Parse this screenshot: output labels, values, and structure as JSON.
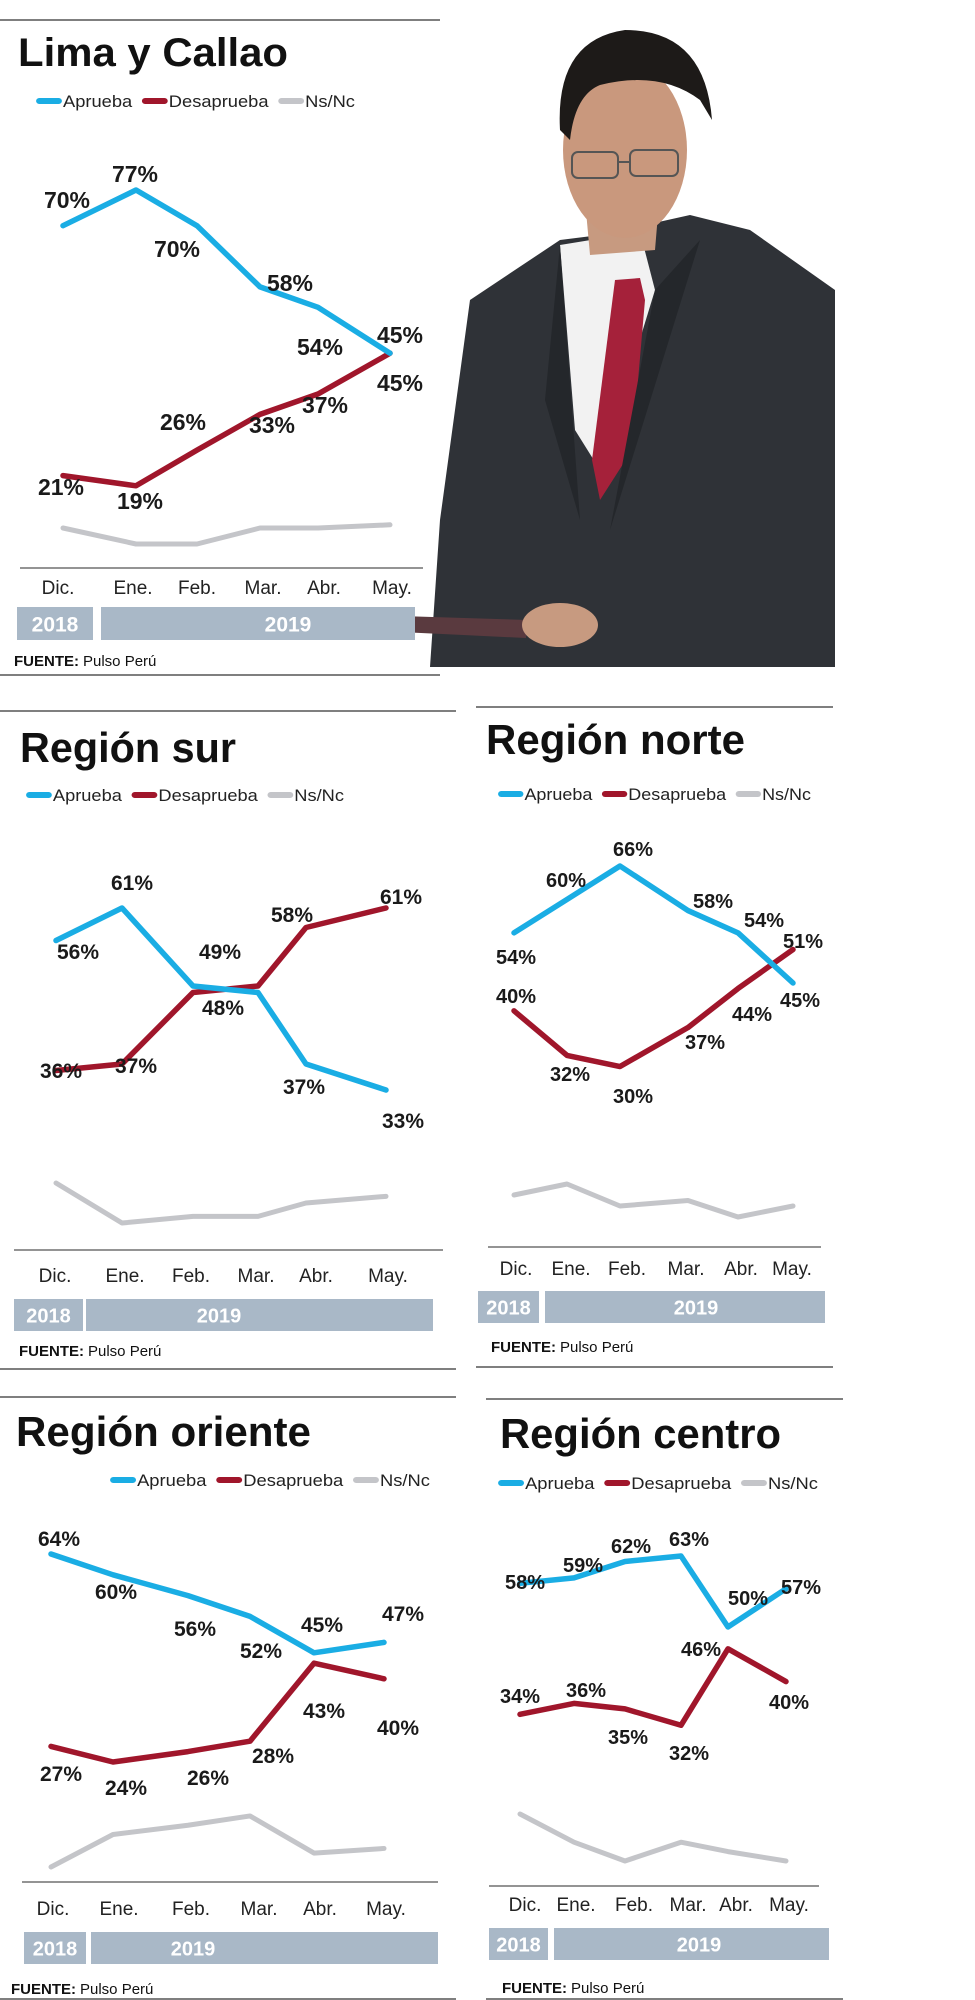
{
  "colors": {
    "aprueba": "#1aade4",
    "desaprueba": "#a0162b",
    "ns_nc": "#c4c5c9",
    "year_bar": "#a9b8c7"
  },
  "photo": {
    "icon": "man-in-suit-holding-tablet-photo"
  },
  "chart_data": [
    {
      "type": "line",
      "title": "Lima y Callao",
      "categories": [
        "Dic.",
        "Ene.",
        "Feb.",
        "Mar.",
        "Abr.",
        "May."
      ],
      "years": [
        "2018",
        "2019"
      ],
      "legend": [
        "Aprueba",
        "Desaprueba",
        "Ns/Nc"
      ],
      "series": [
        {
          "name": "Aprueba",
          "values": [
            70,
            77,
            70,
            58,
            54,
            45
          ],
          "labels": [
            "70%",
            "77%",
            "70%",
            "58%",
            "54%",
            "45%"
          ]
        },
        {
          "name": "Desaprueba",
          "values": [
            21,
            19,
            26,
            33,
            37,
            45
          ],
          "labels": [
            "21%",
            "19%",
            "26%",
            "33%",
            "37%",
            "45%"
          ]
        },
        {
          "name": "Ns/Nc",
          "values": [
            9,
            4,
            4,
            9,
            9,
            10
          ]
        }
      ],
      "source_label": "FUENTE:",
      "source": "Pulso Perú"
    },
    {
      "type": "line",
      "title": "Región sur",
      "categories": [
        "Dic.",
        "Ene.",
        "Feb.",
        "Mar.",
        "Abr.",
        "May."
      ],
      "years": [
        "2018",
        "2019"
      ],
      "legend": [
        "Aprueba",
        "Desaprueba",
        "Ns/Nc"
      ],
      "series": [
        {
          "name": "Aprueba",
          "values": [
            56,
            61,
            49,
            48,
            37,
            33
          ],
          "labels": [
            "56%",
            "61%",
            "49%",
            null,
            "37%",
            "33%"
          ]
        },
        {
          "name": "Desaprueba",
          "values": [
            36,
            37,
            48,
            49,
            58,
            61
          ],
          "labels": [
            "36%",
            "37%",
            "48%",
            null,
            "58%",
            "61%"
          ]
        },
        {
          "name": "Ns/Nc",
          "values": [
            8,
            2,
            3,
            3,
            5,
            6
          ]
        }
      ],
      "source_label": "FUENTE:",
      "source": "Pulso Perú"
    },
    {
      "type": "line",
      "title": "Región norte",
      "categories": [
        "Dic.",
        "Ene.",
        "Feb.",
        "Mar.",
        "Abr.",
        "May."
      ],
      "years": [
        "2018",
        "2019"
      ],
      "legend": [
        "Aprueba",
        "Desaprueba",
        "Ns/Nc"
      ],
      "series": [
        {
          "name": "Aprueba",
          "values": [
            54,
            60,
            66,
            58,
            54,
            45
          ],
          "labels": [
            "54%",
            "60%",
            "66%",
            "58%",
            "54%",
            "45%"
          ]
        },
        {
          "name": "Desaprueba",
          "values": [
            40,
            32,
            30,
            37,
            44,
            51
          ],
          "labels": [
            "40%",
            "32%",
            "30%",
            "37%",
            "44%",
            "51%"
          ]
        },
        {
          "name": "Ns/Nc",
          "values": [
            6,
            8,
            4,
            5,
            2,
            4
          ]
        }
      ],
      "source_label": "FUENTE:",
      "source": "Pulso Perú"
    },
    {
      "type": "line",
      "title": "Región oriente",
      "categories": [
        "Dic.",
        "Ene.",
        "Feb.",
        "Mar.",
        "Abr.",
        "May."
      ],
      "years": [
        "2018",
        "2019"
      ],
      "legend": [
        "Aprueba",
        "Desaprueba",
        "Ns/Nc"
      ],
      "series": [
        {
          "name": "Aprueba",
          "values": [
            64,
            60,
            56,
            52,
            45,
            47
          ],
          "labels": [
            "64%",
            "60%",
            "56%",
            "52%",
            "45%",
            "47%"
          ]
        },
        {
          "name": "Desaprueba",
          "values": [
            27,
            24,
            26,
            28,
            43,
            40
          ],
          "labels": [
            "27%",
            "24%",
            "26%",
            "28%",
            "43%",
            "40%"
          ]
        },
        {
          "name": "Ns/Nc",
          "values": [
            9,
            16,
            18,
            20,
            12,
            13
          ]
        }
      ],
      "source_label": "FUENTE:",
      "source": "Pulso Perú"
    },
    {
      "type": "line",
      "title": "Región centro",
      "categories": [
        "Dic.",
        "Ene.",
        "Feb.",
        "Mar.",
        "Abr.",
        "May."
      ],
      "years": [
        "2018",
        "2019"
      ],
      "legend": [
        "Aprueba",
        "Desaprueba",
        "Ns/Nc"
      ],
      "series": [
        {
          "name": "Aprueba",
          "values": [
            58,
            59,
            62,
            63,
            50,
            57
          ],
          "labels": [
            "58%",
            "59%",
            "62%",
            "63%",
            "50%",
            "57%"
          ]
        },
        {
          "name": "Desaprueba",
          "values": [
            34,
            36,
            35,
            32,
            46,
            40
          ],
          "labels": [
            "34%",
            "36%",
            "35%",
            "32%",
            "46%",
            "40%"
          ]
        },
        {
          "name": "Ns/Nc",
          "values": [
            8,
            5,
            3,
            5,
            4,
            3
          ]
        }
      ],
      "source_label": "FUENTE:",
      "source": "Pulso Perú"
    }
  ]
}
